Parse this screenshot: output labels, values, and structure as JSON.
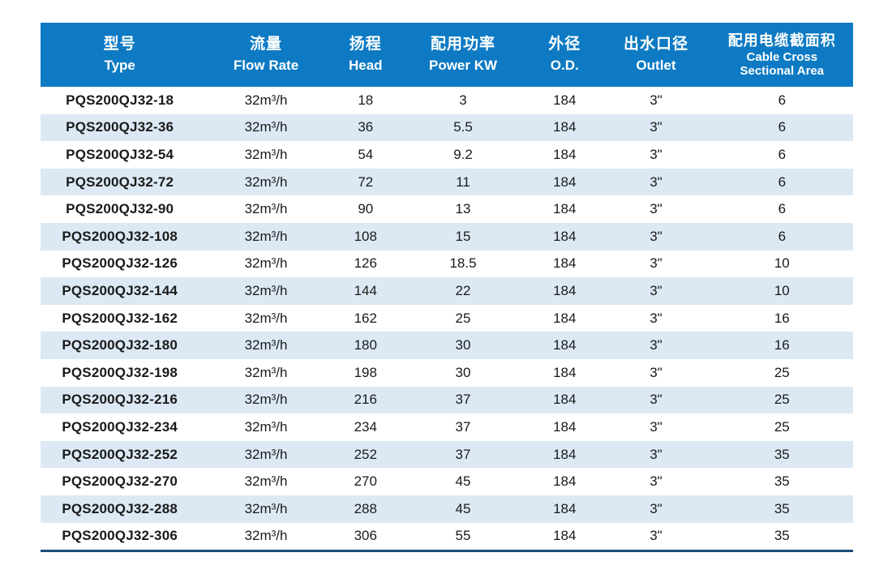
{
  "colors": {
    "header_bg": "#0d7ac3",
    "stripe_bg": "#dce9f5",
    "row_bg": "#ffffff",
    "bottom_border": "#1c4e79",
    "header_text": "#ffffff",
    "body_text": "#1a1a1a"
  },
  "table": {
    "column_keys": [
      "type",
      "flow-rate",
      "head",
      "power-kw",
      "od",
      "outlet",
      "cable-area"
    ],
    "columns": [
      {
        "zh": "型号",
        "en": "Type"
      },
      {
        "zh": "流量",
        "en": "Flow Rate"
      },
      {
        "zh": "扬程",
        "en": "Head"
      },
      {
        "zh": "配用功率",
        "en": "Power KW"
      },
      {
        "zh": "外径",
        "en": "O.D."
      },
      {
        "zh": "出水口径",
        "en": "Outlet"
      },
      {
        "zh": "配用电缆截面积",
        "en": "Cable Cross",
        "en2": "Sectional Area"
      }
    ],
    "rows": [
      [
        "PQS200QJ32-18",
        "32m³/h",
        "18",
        "3",
        "184",
        "3\"",
        "6"
      ],
      [
        "PQS200QJ32-36",
        "32m³/h",
        "36",
        "5.5",
        "184",
        "3\"",
        "6"
      ],
      [
        "PQS200QJ32-54",
        "32m³/h",
        "54",
        "9.2",
        "184",
        "3\"",
        "6"
      ],
      [
        "PQS200QJ32-72",
        "32m³/h",
        "72",
        "11",
        "184",
        "3\"",
        "6"
      ],
      [
        "PQS200QJ32-90",
        "32m³/h",
        "90",
        "13",
        "184",
        "3\"",
        "6"
      ],
      [
        "PQS200QJ32-108",
        "32m³/h",
        "108",
        "15",
        "184",
        "3\"",
        "6"
      ],
      [
        "PQS200QJ32-126",
        "32m³/h",
        "126",
        "18.5",
        "184",
        "3\"",
        "10"
      ],
      [
        "PQS200QJ32-144",
        "32m³/h",
        "144",
        "22",
        "184",
        "3\"",
        "10"
      ],
      [
        "PQS200QJ32-162",
        "32m³/h",
        "162",
        "25",
        "184",
        "3\"",
        "16"
      ],
      [
        "PQS200QJ32-180",
        "32m³/h",
        "180",
        "30",
        "184",
        "3\"",
        "16"
      ],
      [
        "PQS200QJ32-198",
        "32m³/h",
        "198",
        "30",
        "184",
        "3\"",
        "25"
      ],
      [
        "PQS200QJ32-216",
        "32m³/h",
        "216",
        "37",
        "184",
        "3\"",
        "25"
      ],
      [
        "PQS200QJ32-234",
        "32m³/h",
        "234",
        "37",
        "184",
        "3\"",
        "25"
      ],
      [
        "PQS200QJ32-252",
        "32m³/h",
        "252",
        "37",
        "184",
        "3\"",
        "35"
      ],
      [
        "PQS200QJ32-270",
        "32m³/h",
        "270",
        "45",
        "184",
        "3\"",
        "35"
      ],
      [
        "PQS200QJ32-288",
        "32m³/h",
        "288",
        "45",
        "184",
        "3\"",
        "35"
      ],
      [
        "PQS200QJ32-306",
        "32m³/h",
        "306",
        "55",
        "184",
        "3\"",
        "35"
      ]
    ]
  }
}
